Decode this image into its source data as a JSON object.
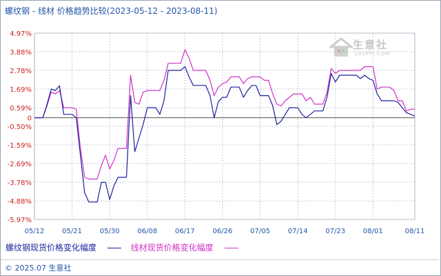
{
  "title": "螺纹钢 - 线材 价格趋势比较(2023-05-12 - 2023-08-11)",
  "copyright": "© 2025.07 生意社",
  "watermark": {
    "name": "生意社",
    "url": "100PPI.COM"
  },
  "colors": {
    "series0": "#1a1f9c",
    "series1": "#d030c8",
    "zero_line": "#555555",
    "grid": "#c0c8d8"
  },
  "chart_data": {
    "type": "line",
    "title": "螺纹钢 - 线材 价格趋势比较(2023-05-12 - 2023-08-11)",
    "xlabel": "",
    "ylabel": "",
    "x_ticks": [
      "05/12",
      "05/21",
      "05/30",
      "06/08",
      "06/17",
      "06/26",
      "07/05",
      "07/14",
      "07/23",
      "08/01",
      "08/11"
    ],
    "y_ticks": [
      "4.97%",
      "3.88%",
      "2.78%",
      "1.69%",
      "0.59%",
      "0",
      "-0.50%",
      "-1.59%",
      "-2.69%",
      "-3.78%",
      "-4.88%",
      "-5.97%"
    ],
    "ylim": [
      -5.97,
      4.97
    ],
    "grid": true,
    "legend_position": "bottom",
    "x": [
      "05/12",
      "05/13",
      "05/14",
      "05/15",
      "05/16",
      "05/17",
      "05/18",
      "05/19",
      "05/20",
      "05/21",
      "05/22",
      "05/23",
      "05/24",
      "05/25",
      "05/26",
      "05/27",
      "05/28",
      "05/29",
      "05/30",
      "05/31",
      "06/01",
      "06/02",
      "06/03",
      "06/04",
      "06/05",
      "06/06",
      "06/07",
      "06/08",
      "06/09",
      "06/10",
      "06/11",
      "06/12",
      "06/13",
      "06/14",
      "06/15",
      "06/16",
      "06/17",
      "06/18",
      "06/19",
      "06/20",
      "06/21",
      "06/22",
      "06/23",
      "06/24",
      "06/25",
      "06/26",
      "06/27",
      "06/28",
      "06/29",
      "06/30",
      "07/01",
      "07/02",
      "07/03",
      "07/04",
      "07/05",
      "07/06",
      "07/07",
      "07/08",
      "07/09",
      "07/10",
      "07/11",
      "07/12",
      "07/13",
      "07/14",
      "07/15",
      "07/16",
      "07/17",
      "07/18",
      "07/19",
      "07/20",
      "07/21",
      "07/22",
      "07/23",
      "07/24",
      "07/25",
      "07/26",
      "07/27",
      "07/28",
      "07/29",
      "07/30",
      "07/31",
      "08/01",
      "08/02",
      "08/03",
      "08/04",
      "08/05",
      "08/06",
      "08/07",
      "08/08",
      "08/09",
      "08/10",
      "08/11"
    ],
    "series": [
      {
        "name": "螺纹钢现货价格变化幅度",
        "color": "#1a1f9c",
        "values": [
          0.0,
          0.0,
          0.0,
          0.78,
          1.69,
          1.6,
          1.88,
          0.2,
          0.2,
          0.2,
          0.0,
          -2.2,
          -4.4,
          -4.95,
          -4.95,
          -4.95,
          -3.8,
          -3.8,
          -4.8,
          -4.0,
          -3.5,
          -3.5,
          -3.5,
          1.3,
          -2.0,
          -1.2,
          -0.4,
          0.59,
          0.59,
          0.59,
          0.2,
          1.0,
          2.78,
          2.78,
          2.78,
          2.78,
          3.0,
          2.4,
          1.9,
          1.9,
          1.9,
          1.9,
          1.3,
          0.0,
          0.95,
          1.2,
          1.2,
          1.8,
          1.8,
          1.8,
          1.2,
          1.6,
          1.9,
          1.9,
          1.3,
          1.3,
          1.3,
          0.7,
          -0.4,
          -0.2,
          0.2,
          0.59,
          0.59,
          0.59,
          0.2,
          0.0,
          0.2,
          0.4,
          0.4,
          0.4,
          1.2,
          2.6,
          2.1,
          2.5,
          2.5,
          2.5,
          2.5,
          2.5,
          2.3,
          2.5,
          2.3,
          2.2,
          1.4,
          1.0,
          1.0,
          1.0,
          1.0,
          0.9,
          0.59,
          0.3,
          0.2,
          0.1
        ]
      },
      {
        "name": "线材现货价格变化幅度",
        "color": "#d030c8",
        "values": [
          0.0,
          0.0,
          0.0,
          0.7,
          1.5,
          1.4,
          1.6,
          0.59,
          0.59,
          0.59,
          0.5,
          -1.8,
          -3.5,
          -3.6,
          -3.6,
          -3.6,
          -2.8,
          -2.2,
          -3.0,
          -2.5,
          -1.8,
          -1.8,
          -1.8,
          2.5,
          0.9,
          0.8,
          1.5,
          1.6,
          1.6,
          1.6,
          1.6,
          2.2,
          3.2,
          3.2,
          3.2,
          3.2,
          4.0,
          3.5,
          2.78,
          2.78,
          2.78,
          2.78,
          2.2,
          1.3,
          1.8,
          2.0,
          2.1,
          2.4,
          2.4,
          2.4,
          2.0,
          2.3,
          2.4,
          2.4,
          2.4,
          2.2,
          2.2,
          1.4,
          0.8,
          0.7,
          1.0,
          1.2,
          1.4,
          1.4,
          1.4,
          1.0,
          1.2,
          0.8,
          0.8,
          0.8,
          1.5,
          2.9,
          2.6,
          2.78,
          2.78,
          2.78,
          2.78,
          2.78,
          2.8,
          3.0,
          3.0,
          3.0,
          1.69,
          1.8,
          1.8,
          1.8,
          1.6,
          1.0,
          1.0,
          0.4,
          0.5,
          0.5
        ]
      }
    ]
  }
}
